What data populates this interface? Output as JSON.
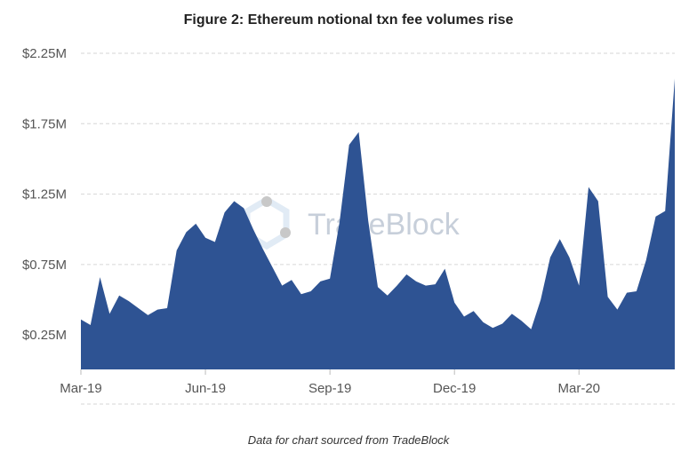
{
  "chart_data": {
    "type": "area",
    "title": "Figure 2: Ethereum notional txn fee volumes rise",
    "caption": "Data for chart sourced from TradeBlock",
    "watermark": "TradeBlock",
    "color": "#2e5393",
    "grid": true,
    "y_ticks": [
      {
        "value": 0.25,
        "label": "$0.25M"
      },
      {
        "value": 0.75,
        "label": "$0.75M"
      },
      {
        "value": 1.25,
        "label": "$1.25M"
      },
      {
        "value": 1.75,
        "label": "$1.75M"
      },
      {
        "value": 2.25,
        "label": "$2.25M"
      }
    ],
    "ylim": [
      0,
      2.25
    ],
    "x_ticks": [
      {
        "index": 0,
        "label": "Mar-19"
      },
      {
        "index": 13,
        "label": "Jun-19"
      },
      {
        "index": 26,
        "label": "Sep-19"
      },
      {
        "index": 39,
        "label": "Dec-19"
      },
      {
        "index": 52,
        "label": "Mar-20"
      }
    ],
    "values": [
      0.36,
      0.32,
      0.66,
      0.4,
      0.53,
      0.49,
      0.44,
      0.39,
      0.43,
      0.44,
      0.85,
      0.98,
      1.04,
      0.94,
      0.91,
      1.12,
      1.2,
      1.15,
      1.0,
      0.86,
      0.73,
      0.6,
      0.64,
      0.54,
      0.56,
      0.63,
      0.65,
      1.05,
      1.6,
      1.69,
      1.06,
      0.59,
      0.53,
      0.6,
      0.68,
      0.63,
      0.6,
      0.61,
      0.72,
      0.48,
      0.38,
      0.42,
      0.34,
      0.3,
      0.33,
      0.4,
      0.35,
      0.29,
      0.5,
      0.8,
      0.93,
      0.8,
      0.6,
      1.3,
      1.2,
      0.52,
      0.43,
      0.55,
      0.56,
      0.78,
      1.09,
      1.13,
      2.07
    ]
  }
}
